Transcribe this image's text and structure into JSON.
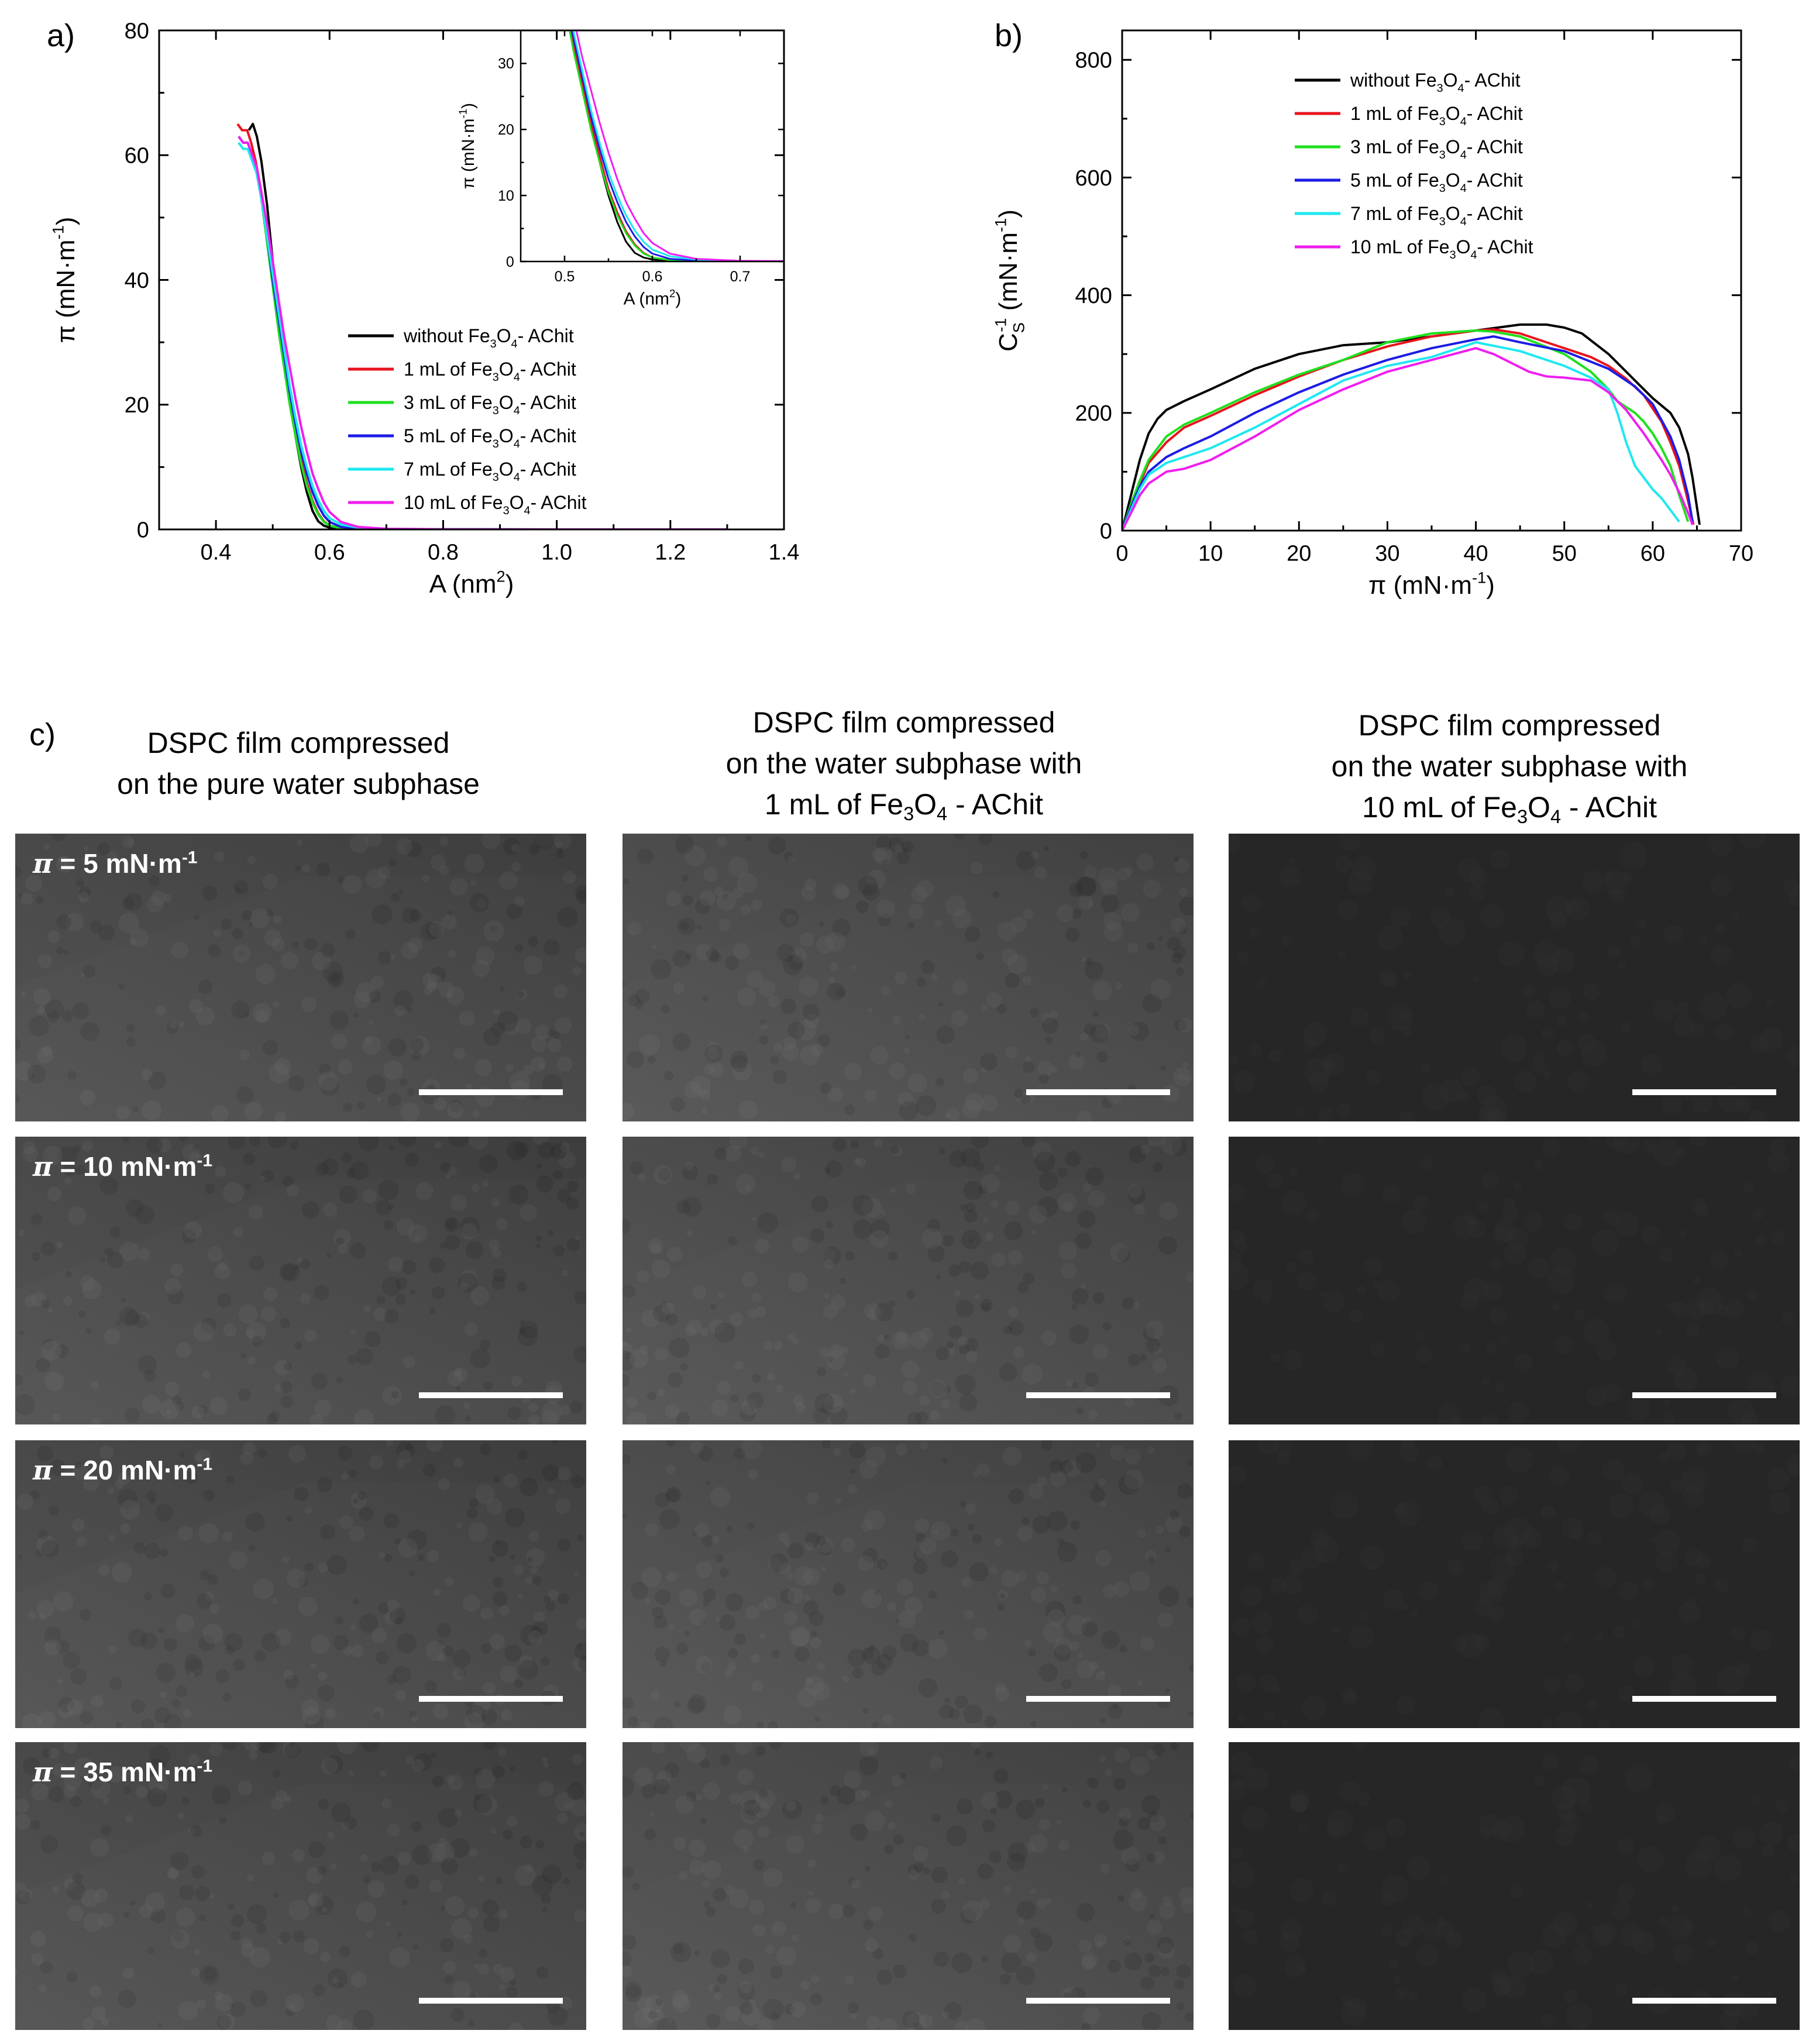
{
  "panels": {
    "a": "a)",
    "b": "b)",
    "c": "c)"
  },
  "legend_labels": [
    "without Fe3O4- AChit",
    "1 mL of Fe3O4- AChit",
    "3 mL of Fe3O4- AChit",
    "5 mL of Fe3O4- AChit",
    "7 mL of Fe3O4- AChit",
    "10 mL of Fe3O4- AChit"
  ],
  "colors": [
    "#000000",
    "#e8141d",
    "#1ee01e",
    "#1c1ce6",
    "#1ee8f0",
    "#f01ef0"
  ],
  "chart_data": [
    {
      "id": "a",
      "type": "line",
      "xlabel": "A (nm2)",
      "ylabel": "π (mN·m-1)",
      "xlim": [
        0.3,
        1.4
      ],
      "ylim": [
        0,
        80
      ],
      "xticks": [
        "0.4",
        "0.6",
        "0.8",
        "1.0",
        "1.2",
        "1.4"
      ],
      "yticks": [
        "0",
        "20",
        "40",
        "60",
        "80"
      ],
      "series": [
        {
          "name": "without Fe3O4- AChit",
          "x": [
            0.458,
            0.465,
            0.472,
            0.48,
            0.49,
            0.5,
            0.51,
            0.52,
            0.53,
            0.54,
            0.55,
            0.56,
            0.57,
            0.58,
            0.59,
            0.6,
            0.62,
            0.65,
            0.7,
            0.8,
            1.0,
            1.3
          ],
          "y": [
            64,
            65,
            63,
            59,
            52,
            43,
            35,
            28,
            21,
            15,
            10,
            6,
            3,
            1.3,
            0.6,
            0.3,
            0.1,
            0.05,
            0.02,
            0.01,
            0,
            0
          ]
        },
        {
          "name": "1 mL of Fe3O4- AChit",
          "x": [
            0.438,
            0.446,
            0.455,
            0.462,
            0.47,
            0.48,
            0.49,
            0.5,
            0.51,
            0.52,
            0.53,
            0.54,
            0.55,
            0.56,
            0.57,
            0.58,
            0.59,
            0.6,
            0.62,
            0.65,
            0.7,
            0.8,
            1.0,
            1.3
          ],
          "y": [
            65,
            64,
            64,
            62,
            59,
            54,
            47,
            40,
            33,
            27,
            21,
            16,
            11,
            7.5,
            4.6,
            2.6,
            1.3,
            0.6,
            0.2,
            0.07,
            0.02,
            0.01,
            0,
            0
          ]
        },
        {
          "name": "3 mL of Fe3O4- AChit",
          "x": [
            0.44,
            0.448,
            0.456,
            0.464,
            0.472,
            0.48,
            0.49,
            0.5,
            0.51,
            0.52,
            0.53,
            0.54,
            0.55,
            0.56,
            0.57,
            0.58,
            0.59,
            0.6,
            0.62,
            0.65,
            0.7,
            0.8,
            1.0,
            1.3
          ],
          "y": [
            63,
            62,
            62,
            60,
            57,
            53,
            46,
            39,
            32,
            26,
            20,
            15,
            10.5,
            7,
            4.3,
            2.4,
            1.2,
            0.6,
            0.2,
            0.07,
            0.02,
            0.01,
            0,
            0
          ]
        },
        {
          "name": "5 mL of Fe3O4- AChit",
          "x": [
            0.44,
            0.448,
            0.456,
            0.464,
            0.472,
            0.48,
            0.49,
            0.5,
            0.51,
            0.52,
            0.53,
            0.54,
            0.55,
            0.56,
            0.57,
            0.58,
            0.59,
            0.6,
            0.62,
            0.65,
            0.7,
            0.8,
            1.0,
            1.3
          ],
          "y": [
            63,
            62,
            62,
            60,
            57,
            53,
            47,
            40,
            34,
            28,
            22,
            17,
            12.5,
            9,
            6,
            3.8,
            2.2,
            1.2,
            0.4,
            0.15,
            0.05,
            0.02,
            0,
            0
          ]
        },
        {
          "name": "7 mL of Fe3O4- AChit",
          "x": [
            0.44,
            0.448,
            0.456,
            0.464,
            0.472,
            0.48,
            0.49,
            0.5,
            0.51,
            0.52,
            0.53,
            0.54,
            0.55,
            0.56,
            0.57,
            0.58,
            0.59,
            0.6,
            0.62,
            0.65,
            0.7,
            0.8,
            1.0,
            1.3
          ],
          "y": [
            62,
            61,
            61,
            59,
            57,
            53,
            47,
            41,
            35,
            29,
            23,
            18,
            13.5,
            10,
            7,
            4.7,
            3,
            1.8,
            0.8,
            0.3,
            0.1,
            0.03,
            0,
            0
          ]
        },
        {
          "name": "10 mL of Fe3O4- AChit",
          "x": [
            0.44,
            0.448,
            0.456,
            0.464,
            0.472,
            0.48,
            0.49,
            0.5,
            0.51,
            0.52,
            0.53,
            0.54,
            0.55,
            0.56,
            0.57,
            0.58,
            0.59,
            0.6,
            0.62,
            0.65,
            0.7,
            0.8,
            1.0,
            1.3
          ],
          "y": [
            63,
            62,
            62,
            60,
            58,
            54,
            49,
            43,
            37,
            31,
            26,
            21,
            16.5,
            12.5,
            9,
            6.5,
            4.3,
            2.8,
            1.2,
            0.4,
            0.1,
            0.03,
            0,
            0
          ]
        }
      ],
      "inset": {
        "xlabel": "A (nm2)",
        "ylabel": "π (mN·m-1)",
        "xlim": [
          0.45,
          0.75
        ],
        "ylim": [
          0,
          35
        ],
        "xticks": [
          "0.5",
          "0.6",
          "0.7"
        ],
        "yticks": [
          "0",
          "10",
          "20",
          "30"
        ]
      }
    },
    {
      "id": "b",
      "type": "line",
      "xlabel": "π (mN·m-1)",
      "ylabel": "CS-1 (mN·m-1)",
      "xlim": [
        0,
        70
      ],
      "ylim": [
        0,
        850
      ],
      "xticks": [
        "0",
        "10",
        "20",
        "30",
        "40",
        "50",
        "60",
        "70"
      ],
      "yticks": [
        "0",
        "200",
        "400",
        "600",
        "800"
      ],
      "series": [
        {
          "name": "without Fe3O4- AChit",
          "x": [
            0,
            1,
            2,
            3,
            4,
            5,
            7,
            10,
            15,
            20,
            25,
            30,
            35,
            40,
            45,
            48,
            50,
            52,
            55,
            58,
            60,
            62,
            63,
            64,
            64.5,
            65,
            65.3
          ],
          "y": [
            0,
            60,
            120,
            165,
            190,
            205,
            220,
            240,
            275,
            300,
            315,
            320,
            330,
            340,
            350,
            350,
            345,
            335,
            300,
            255,
            225,
            200,
            175,
            130,
            90,
            40,
            10
          ]
        },
        {
          "name": "1 mL of Fe3O4- AChit",
          "x": [
            0,
            1,
            2,
            3,
            5,
            7,
            10,
            15,
            20,
            25,
            30,
            35,
            40,
            42,
            45,
            50,
            53,
            55,
            57,
            59,
            61,
            62,
            63,
            64,
            64.6
          ],
          "y": [
            0,
            40,
            80,
            115,
            150,
            175,
            195,
            230,
            262,
            290,
            313,
            330,
            340,
            342,
            335,
            310,
            295,
            280,
            258,
            230,
            185,
            150,
            110,
            50,
            10
          ]
        },
        {
          "name": "3 mL of Fe3O4- AChit",
          "x": [
            0,
            1,
            2,
            3,
            5,
            7,
            10,
            15,
            20,
            25,
            30,
            35,
            40,
            42,
            45,
            50,
            53,
            55,
            56,
            57,
            58,
            59,
            60,
            61,
            62,
            63,
            64
          ],
          "y": [
            0,
            45,
            85,
            120,
            160,
            180,
            200,
            235,
            265,
            290,
            320,
            335,
            340,
            338,
            330,
            300,
            270,
            240,
            220,
            210,
            200,
            185,
            165,
            140,
            110,
            60,
            15
          ]
        },
        {
          "name": "5 mL of Fe3O4- AChit",
          "x": [
            0,
            1,
            2,
            3,
            5,
            7,
            10,
            15,
            20,
            25,
            30,
            35,
            40,
            42,
            45,
            50,
            55,
            58,
            60,
            62,
            63,
            64,
            64.5
          ],
          "y": [
            0,
            40,
            75,
            100,
            125,
            140,
            160,
            200,
            235,
            265,
            290,
            310,
            325,
            330,
            320,
            305,
            275,
            245,
            215,
            160,
            120,
            60,
            15
          ]
        },
        {
          "name": "7 mL of Fe3O4- AChit",
          "x": [
            0,
            1,
            2,
            3,
            5,
            7,
            10,
            15,
            20,
            25,
            30,
            35,
            40,
            45,
            50,
            53,
            55,
            56,
            57,
            58,
            59,
            60,
            61,
            62,
            63
          ],
          "y": [
            0,
            35,
            70,
            95,
            115,
            125,
            140,
            175,
            215,
            255,
            280,
            295,
            320,
            305,
            280,
            260,
            240,
            200,
            150,
            110,
            90,
            70,
            55,
            35,
            15
          ]
        },
        {
          "name": "10 mL of Fe3O4- AChit",
          "x": [
            0,
            1,
            2,
            3,
            5,
            7,
            10,
            15,
            20,
            25,
            30,
            35,
            40,
            42,
            44,
            46,
            48,
            50,
            53,
            55,
            57,
            59,
            61,
            62,
            63,
            64,
            64.5
          ],
          "y": [
            0,
            30,
            60,
            80,
            100,
            105,
            120,
            160,
            205,
            240,
            270,
            290,
            310,
            300,
            285,
            270,
            262,
            260,
            255,
            235,
            205,
            165,
            120,
            95,
            65,
            30,
            10
          ]
        }
      ]
    }
  ],
  "bam": {
    "columns": [
      [
        "DSPC film compressed",
        "on the pure water subphase"
      ],
      [
        "DSPC film compressed",
        "on the water subphase with",
        "1 mL of Fe3O4 - AChit"
      ],
      [
        "DSPC film compressed",
        "on the water subphase with",
        "10 mL of Fe3O4 - AChit"
      ]
    ],
    "rows": [
      "π = 5 mN·m-1",
      "π = 10 mN·m-1",
      "π = 20 mN·m-1",
      "π = 35 mN·m-1"
    ],
    "brightness": [
      "#4a4a4a",
      "#4e4e4e",
      "#262626"
    ]
  }
}
